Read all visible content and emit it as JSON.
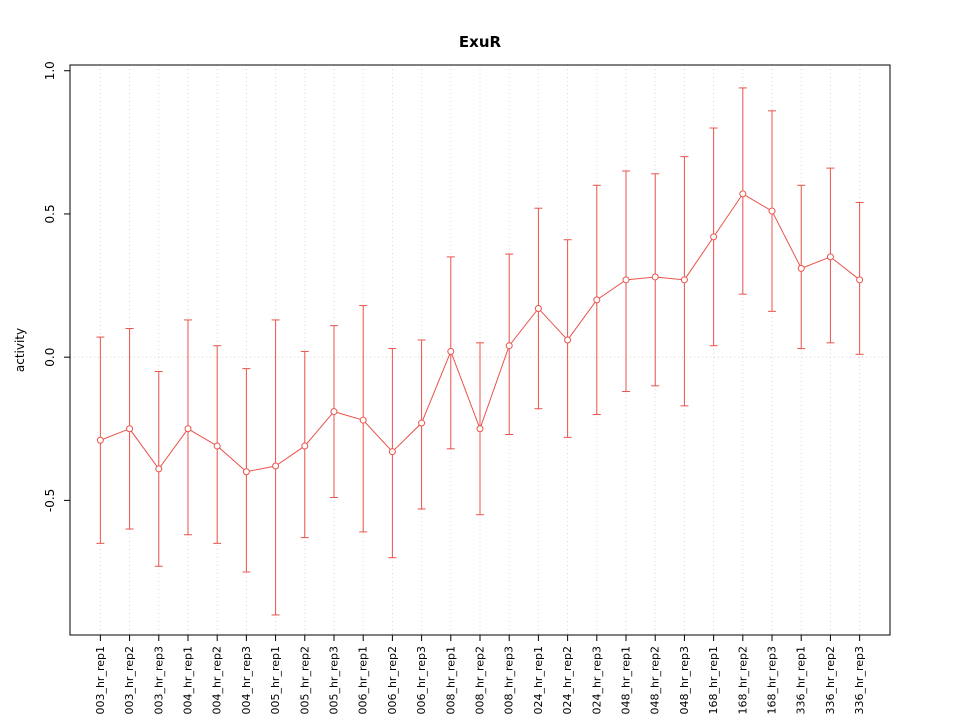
{
  "figure": {
    "background": "#ffffff"
  },
  "chart_data": {
    "type": "line",
    "error_bars": true,
    "title": "ExuR",
    "xlabel": "",
    "ylabel": "activity",
    "ylim": [
      -0.97,
      1.02
    ],
    "yticks": [
      -0.5,
      0.0,
      0.5,
      1.0
    ],
    "ytick_labels": [
      "-0.5",
      "0.0",
      "0.5",
      "1.0"
    ],
    "grid": "dotted vertical line at every category; dotted horizontal reference line at y=0",
    "legend": "none",
    "point_style": "open-circle",
    "colors": {
      "series": "#e9534b",
      "grid": "#d9d9d9",
      "zero_line": "#dfc6c6",
      "box": "#000000"
    },
    "categories": [
      "003_hr_rep1",
      "003_hr_rep2",
      "003_hr_rep3",
      "004_hr_rep1",
      "004_hr_rep2",
      "004_hr_rep3",
      "005_hr_rep1",
      "005_hr_rep2",
      "005_hr_rep3",
      "006_hr_rep1",
      "006_hr_rep2",
      "006_hr_rep3",
      "008_hr_rep1",
      "008_hr_rep2",
      "008_hr_rep3",
      "024_hr_rep1",
      "024_hr_rep2",
      "024_hr_rep3",
      "048_hr_rep1",
      "048_hr_rep2",
      "048_hr_rep3",
      "168_hr_rep1",
      "168_hr_rep2",
      "168_hr_rep3",
      "336_hr_rep1",
      "336_hr_rep2",
      "336_hr_rep3"
    ],
    "values": [
      -0.29,
      -0.25,
      -0.39,
      -0.25,
      -0.31,
      -0.4,
      -0.38,
      -0.31,
      -0.19,
      -0.22,
      -0.33,
      -0.23,
      0.02,
      -0.25,
      0.04,
      0.17,
      0.06,
      0.2,
      0.27,
      0.28,
      0.27,
      0.42,
      0.57,
      0.51,
      0.31,
      0.35,
      0.27
    ],
    "error_low": [
      -0.65,
      -0.6,
      -0.73,
      -0.62,
      -0.65,
      -0.75,
      -0.9,
      -0.63,
      -0.49,
      -0.61,
      -0.7,
      -0.53,
      -0.32,
      -0.55,
      -0.27,
      -0.18,
      -0.28,
      -0.2,
      -0.12,
      -0.1,
      -0.17,
      0.04,
      0.22,
      0.16,
      0.03,
      0.05,
      0.01
    ],
    "error_high": [
      0.07,
      0.1,
      -0.05,
      0.13,
      0.04,
      -0.04,
      0.13,
      0.02,
      0.11,
      0.18,
      0.03,
      0.06,
      0.35,
      0.05,
      0.36,
      0.52,
      0.41,
      0.6,
      0.65,
      0.64,
      0.7,
      0.8,
      0.94,
      0.86,
      0.6,
      0.66,
      0.54
    ]
  }
}
